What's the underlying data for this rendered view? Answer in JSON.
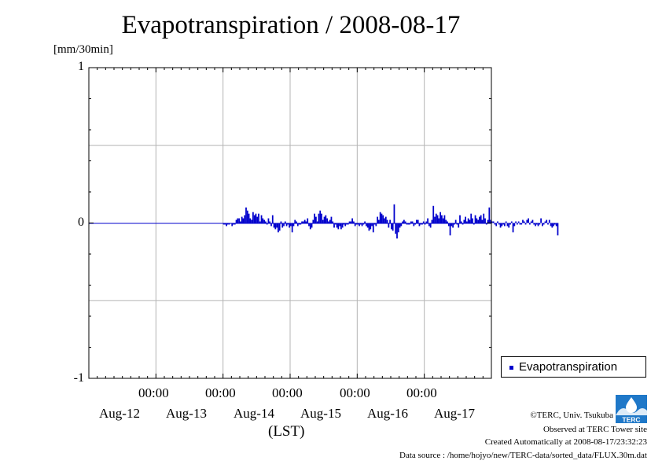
{
  "title": "Evapotranspiration / 2008-08-17",
  "unit": "[mm/30min]",
  "xlabel": "(LST)",
  "legend": {
    "label": "Evapotranspiration"
  },
  "credits": {
    "copyright": "©TERC, Univ. Tsukuba",
    "observed": "Observed at TERC Tower site",
    "created": "Created Automatically at 2008-08-17/23:32:23",
    "source": "Data source : /home/hojyo/new/TERC-data/sorted_data/FLUX.30m.dat"
  },
  "logo_text": "TERC",
  "colors": {
    "series": "#0000cc",
    "grid": "#b4b4b4",
    "axis": "#000000"
  },
  "chart_data": {
    "type": "bar",
    "title": "Evapotranspiration / 2008-08-17",
    "ylabel": "[mm/30min]",
    "xlabel": "(LST)",
    "ylim": [
      -1,
      1
    ],
    "yticks": [
      "1",
      "0",
      "-1"
    ],
    "grid": true,
    "legend_position": "right",
    "x_time_labels": [
      "00:00",
      "00:00",
      "00:00",
      "00:00",
      "00:00"
    ],
    "x_date_labels": [
      "Aug-12",
      "Aug-13",
      "Aug-14",
      "Aug-15",
      "Aug-16",
      "Aug-17"
    ],
    "x_range": [
      "2008-08-11 00:00",
      "2008-08-17 00:00"
    ],
    "series": [
      {
        "name": "Evapotranspiration",
        "interval_minutes": 30,
        "values": [
          0,
          0,
          0,
          0,
          0,
          0,
          0,
          0,
          0,
          0,
          0,
          0,
          0,
          0,
          0,
          0,
          0,
          0,
          0,
          0,
          0,
          0,
          0,
          0,
          0,
          0,
          0,
          0,
          0,
          0,
          0,
          0,
          0,
          0,
          0,
          0,
          0,
          0,
          0,
          0,
          0,
          0,
          0,
          0,
          0,
          0,
          0,
          0,
          0,
          0,
          0,
          0,
          0,
          0,
          0,
          0,
          0,
          0,
          0,
          0,
          0,
          0,
          0,
          0,
          0,
          0,
          0,
          0,
          0,
          0,
          0,
          0,
          0,
          0,
          0,
          0,
          0,
          0,
          0,
          0,
          0,
          0,
          0,
          0,
          0,
          0,
          0,
          0,
          0,
          0,
          0,
          0,
          0,
          0,
          0,
          0,
          -0.01,
          -0.01,
          -0.02,
          -0.01,
          -0.01,
          0,
          -0.02,
          -0.01,
          -0.01,
          0.02,
          0.03,
          0.03,
          0.01,
          0.04,
          0.03,
          0.05,
          0.1,
          0.08,
          0.06,
          0.03,
          0.02,
          0.07,
          0.05,
          0.06,
          0.04,
          0.06,
          0.01,
          0.05,
          0.03,
          0.02,
          0.01,
          -0.01,
          0.03,
          0.01,
          -0.02,
          0.05,
          -0.03,
          -0.04,
          -0.03,
          -0.06,
          -0.05,
          0.01,
          -0.03,
          -0.02,
          0.01,
          -0.02,
          -0.01,
          -0.03,
          -0.02,
          -0.06,
          -0.02,
          0.02,
          0.01,
          -0.02,
          -0.01,
          -0.01,
          0.01,
          0.01,
          0.02,
          0.01,
          0.03,
          -0.02,
          -0.04,
          -0.03,
          0.02,
          0.06,
          0.04,
          0.01,
          0.06,
          0.08,
          0.06,
          0.02,
          0.04,
          0.05,
          0.03,
          0.01,
          0.02,
          0.04,
          0.01,
          -0.03,
          -0.01,
          -0.03,
          -0.04,
          -0.02,
          -0.04,
          -0.03,
          -0.01,
          -0.02,
          -0.01,
          -0.01,
          0.01,
          0.01,
          0.03,
          0.01,
          -0.02,
          -0.01,
          -0.01,
          -0.02,
          -0.01,
          -0.02,
          -0.01,
          0.01,
          -0.02,
          -0.03,
          -0.05,
          -0.04,
          -0.02,
          -0.06,
          -0.01,
          -0.02,
          0.04,
          0.02,
          0.07,
          0.06,
          0.05,
          0.03,
          0.04,
          0.02,
          -0.03,
          0.02,
          -0.04,
          -0.05,
          0.12,
          -0.07,
          -0.1,
          -0.06,
          -0.03,
          -0.02,
          0.01,
          0.02,
          0.01,
          -0.01,
          -0.01,
          -0.01,
          0.01,
          0.01,
          -0.02,
          -0.01,
          0.02,
          0.02,
          -0.02,
          -0.01,
          -0.01,
          0.01,
          -0.01,
          0.01,
          0.03,
          -0.02,
          -0.03,
          0.02,
          0.11,
          0.04,
          0.06,
          0.05,
          0.03,
          0.07,
          0.05,
          0.03,
          0.05,
          0.02,
          0.01,
          -0.02,
          -0.08,
          -0.02,
          -0.03,
          -0.01,
          0.02,
          -0.01,
          -0.03,
          0.05,
          0.01,
          -0.01,
          0.02,
          0.04,
          0.01,
          0.03,
          0.02,
          0.06,
          0.03,
          -0.01,
          0.05,
          0.03,
          0.02,
          0.04,
          0.05,
          0.02,
          0.06,
          0.03,
          -0.01,
          0.02,
          0.1,
          0.02,
          0.01,
          0.01,
          -0.01,
          -0.02,
          0.01,
          -0.01,
          -0.03,
          -0.02,
          -0.01,
          -0.02,
          0.01,
          -0.02,
          -0.03,
          -0.01,
          0.01,
          -0.06,
          -0.02,
          0.01,
          -0.01,
          0.01,
          -0.01,
          -0.01,
          0.02,
          0.01,
          -0.01,
          0.02,
          0.03,
          -0.01,
          0.01,
          0.02,
          -0.01,
          -0.02,
          -0.01,
          -0.02,
          -0.01,
          0.03,
          -0.02,
          -0.01,
          0.01,
          0.02,
          -0.01,
          0.02,
          -0.02,
          -0.03,
          -0.02,
          -0.01,
          -0.02,
          -0.08
        ]
      }
    ]
  }
}
